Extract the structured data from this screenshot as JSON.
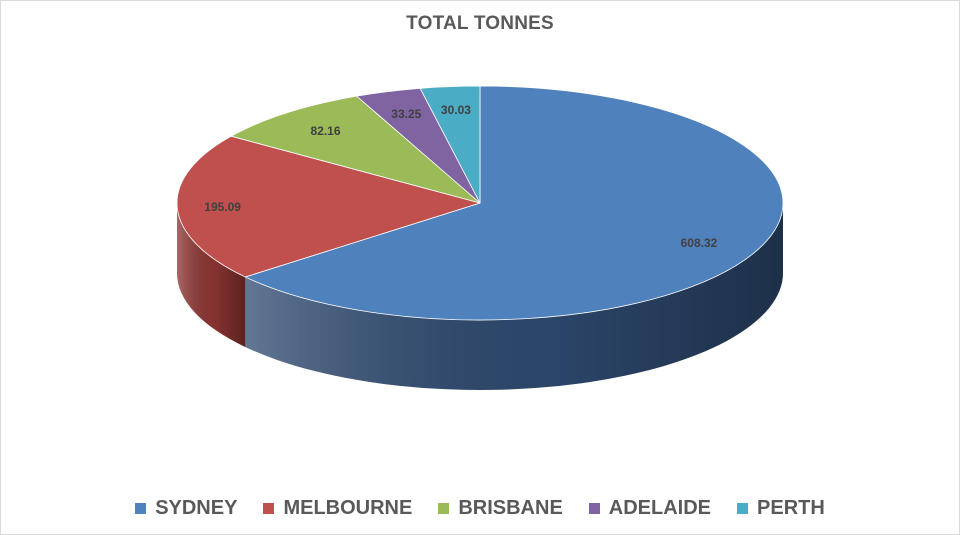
{
  "chart_data": {
    "type": "pie",
    "title": "TOTAL TONNES",
    "categories": [
      "SYDNEY",
      "MELBOURNE",
      "BRISBANE",
      "ADELAIDE",
      "PERTH"
    ],
    "values": [
      608.32,
      195.09,
      82.16,
      33.25,
      30.03
    ],
    "data_labels": [
      "608.32",
      "195.09",
      "82.16",
      "33.25",
      "30.03"
    ],
    "colors": [
      "#4f81bd",
      "#c0504d",
      "#9bbb59",
      "#8064a2",
      "#4bacc6"
    ],
    "side_colors": [
      "#2e4a70",
      "#8c3532",
      "#6e8a3b",
      "#5a4676",
      "#33809a"
    ],
    "legend_position": "bottom",
    "style": "3d"
  }
}
